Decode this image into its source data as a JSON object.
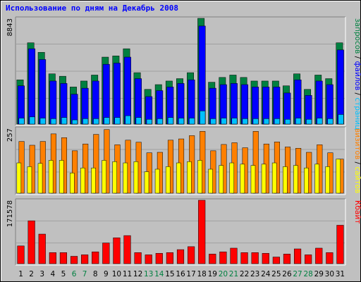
{
  "title": "Использование по дням на Декабрь 2008",
  "colors": {
    "background": "#c0c0c0",
    "frame_light": "#ffffff",
    "frame_dark": "#808080",
    "title": "#0000ff",
    "hits": "#008040",
    "files": "#0000ff",
    "pages": "#00c0ff",
    "visits": "#ff8000",
    "sites": "#ffff00",
    "kbytes": "#ff0000",
    "weekend_label": "#008040",
    "weekday_label": "#000000"
  },
  "chart_data": [
    {
      "type": "bar",
      "panel": "requests",
      "ytick_label": "8843",
      "ylim": [
        0,
        8843
      ],
      "ylabel_parts": [
        {
          "text": "запросов",
          "color": "#008040"
        },
        {
          "text": " / ",
          "color": "#000000"
        },
        {
          "text": "файлов",
          "color": "#0000ff"
        },
        {
          "text": " / ",
          "color": "#000000"
        },
        {
          "text": "страниц",
          "color": "#00c0ff"
        }
      ],
      "categories": [
        "1",
        "2",
        "3",
        "4",
        "5",
        "6",
        "7",
        "8",
        "9",
        "10",
        "11",
        "12",
        "13",
        "14",
        "15",
        "16",
        "17",
        "18",
        "19",
        "20",
        "21",
        "22",
        "23",
        "24",
        "25",
        "26",
        "27",
        "28",
        "29",
        "30",
        "31"
      ],
      "series": [
        {
          "name": "запросов",
          "color": "#008040",
          "values": [
            3700,
            6800,
            6000,
            4200,
            4000,
            3100,
            3600,
            4100,
            5600,
            5700,
            6300,
            4300,
            2900,
            3300,
            3600,
            3800,
            4300,
            8843,
            3500,
            3900,
            4100,
            3900,
            3600,
            3600,
            3600,
            3200,
            4200,
            2900,
            4100,
            3800,
            6800
          ]
        },
        {
          "name": "файлов",
          "color": "#0000ff",
          "values": [
            3200,
            6300,
            5400,
            3600,
            3400,
            2500,
            3000,
            3600,
            5000,
            5100,
            5600,
            3800,
            2300,
            2800,
            3100,
            3400,
            3700,
            8200,
            3000,
            3300,
            3400,
            3300,
            3100,
            3100,
            3100,
            2600,
            3700,
            2400,
            3600,
            3300,
            6200
          ]
        },
        {
          "name": "страниц",
          "color": "#00c0ff",
          "values": [
            500,
            600,
            500,
            450,
            550,
            350,
            450,
            450,
            550,
            550,
            700,
            550,
            400,
            450,
            550,
            500,
            500,
            1100,
            450,
            500,
            500,
            450,
            450,
            450,
            450,
            400,
            500,
            400,
            500,
            450,
            800
          ]
        }
      ]
    },
    {
      "type": "bar",
      "panel": "visits",
      "ytick_label": "257",
      "ylim": [
        0,
        257
      ],
      "ylabel_parts": [
        {
          "text": "визитов",
          "color": "#ff8000"
        },
        {
          "text": " / ",
          "color": "#000000"
        },
        {
          "text": "сайтов",
          "color": "#ffff00"
        }
      ],
      "categories": [
        "1",
        "2",
        "3",
        "4",
        "5",
        "6",
        "7",
        "8",
        "9",
        "10",
        "11",
        "12",
        "13",
        "14",
        "15",
        "16",
        "17",
        "18",
        "19",
        "20",
        "21",
        "22",
        "23",
        "24",
        "25",
        "26",
        "27",
        "28",
        "29",
        "30",
        "31"
      ],
      "series": [
        {
          "name": "визитов",
          "color": "#ff8000",
          "values": [
            205,
            190,
            205,
            235,
            220,
            168,
            195,
            233,
            252,
            192,
            210,
            202,
            160,
            162,
            210,
            215,
            228,
            245,
            168,
            193,
            200,
            180,
            245,
            195,
            203,
            183,
            178,
            162,
            192,
            160,
            135
          ]
        },
        {
          "name": "сайтов",
          "color": "#ffff00",
          "values": [
            120,
            105,
            118,
            130,
            130,
            80,
            100,
            100,
            130,
            125,
            120,
            125,
            85,
            95,
            105,
            120,
            125,
            130,
            95,
            110,
            120,
            115,
            110,
            115,
            120,
            105,
            110,
            100,
            115,
            105,
            135
          ]
        }
      ]
    },
    {
      "type": "bar",
      "panel": "kbytes",
      "ytick_label": "171578",
      "ylim": [
        0,
        171578
      ],
      "ylabel_parts": [
        {
          "text": "Кбайт",
          "color": "#ff0000"
        }
      ],
      "categories": [
        "1",
        "2",
        "3",
        "4",
        "5",
        "6",
        "7",
        "8",
        "9",
        "10",
        "11",
        "12",
        "13",
        "14",
        "15",
        "16",
        "17",
        "18",
        "19",
        "20",
        "21",
        "22",
        "23",
        "24",
        "25",
        "26",
        "27",
        "28",
        "29",
        "30",
        "31"
      ],
      "weekend_days": [
        6,
        7,
        13,
        14,
        20,
        21,
        27,
        28
      ],
      "series": [
        {
          "name": "Кбайт",
          "color": "#ff0000",
          "values": [
            48000,
            116000,
            80000,
            30000,
            30000,
            20000,
            24000,
            32000,
            56000,
            70000,
            76000,
            30000,
            24000,
            28000,
            30000,
            38000,
            46000,
            171578,
            26000,
            32000,
            42000,
            30000,
            30000,
            28000,
            18000,
            26000,
            40000,
            24000,
            42000,
            30000,
            104000
          ]
        }
      ]
    }
  ]
}
